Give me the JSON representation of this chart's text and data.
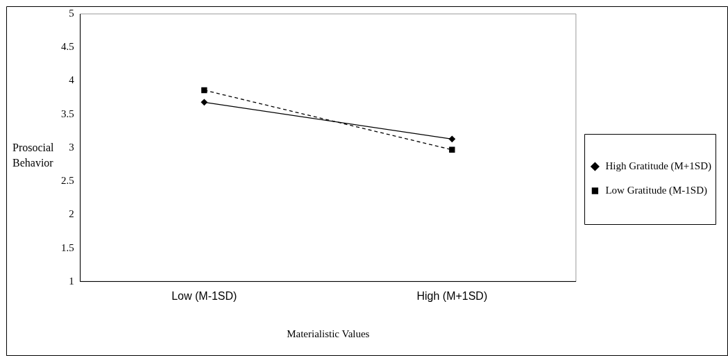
{
  "chart_data": {
    "type": "line",
    "xlabel": "Materialistic Values",
    "ylabel": "Prosocial Behavior",
    "categories": [
      "Low (M-1SD)",
      "High (M+1SD)"
    ],
    "series": [
      {
        "name": "High Gratitude (M+1SD)",
        "color": "#000000",
        "values": [
          3.68,
          3.13
        ],
        "marker": "diamond",
        "line_style": "solid"
      },
      {
        "name": "Low Gratitude (M-1SD)",
        "color": "#000000",
        "values": [
          3.86,
          2.97
        ],
        "marker": "square",
        "line_style": "dashed"
      }
    ],
    "ylim": [
      1,
      5
    ],
    "yticks": [
      1,
      1.5,
      2,
      2.5,
      3,
      3.5,
      4,
      4.5,
      5
    ],
    "grid": false,
    "legend": "right"
  }
}
